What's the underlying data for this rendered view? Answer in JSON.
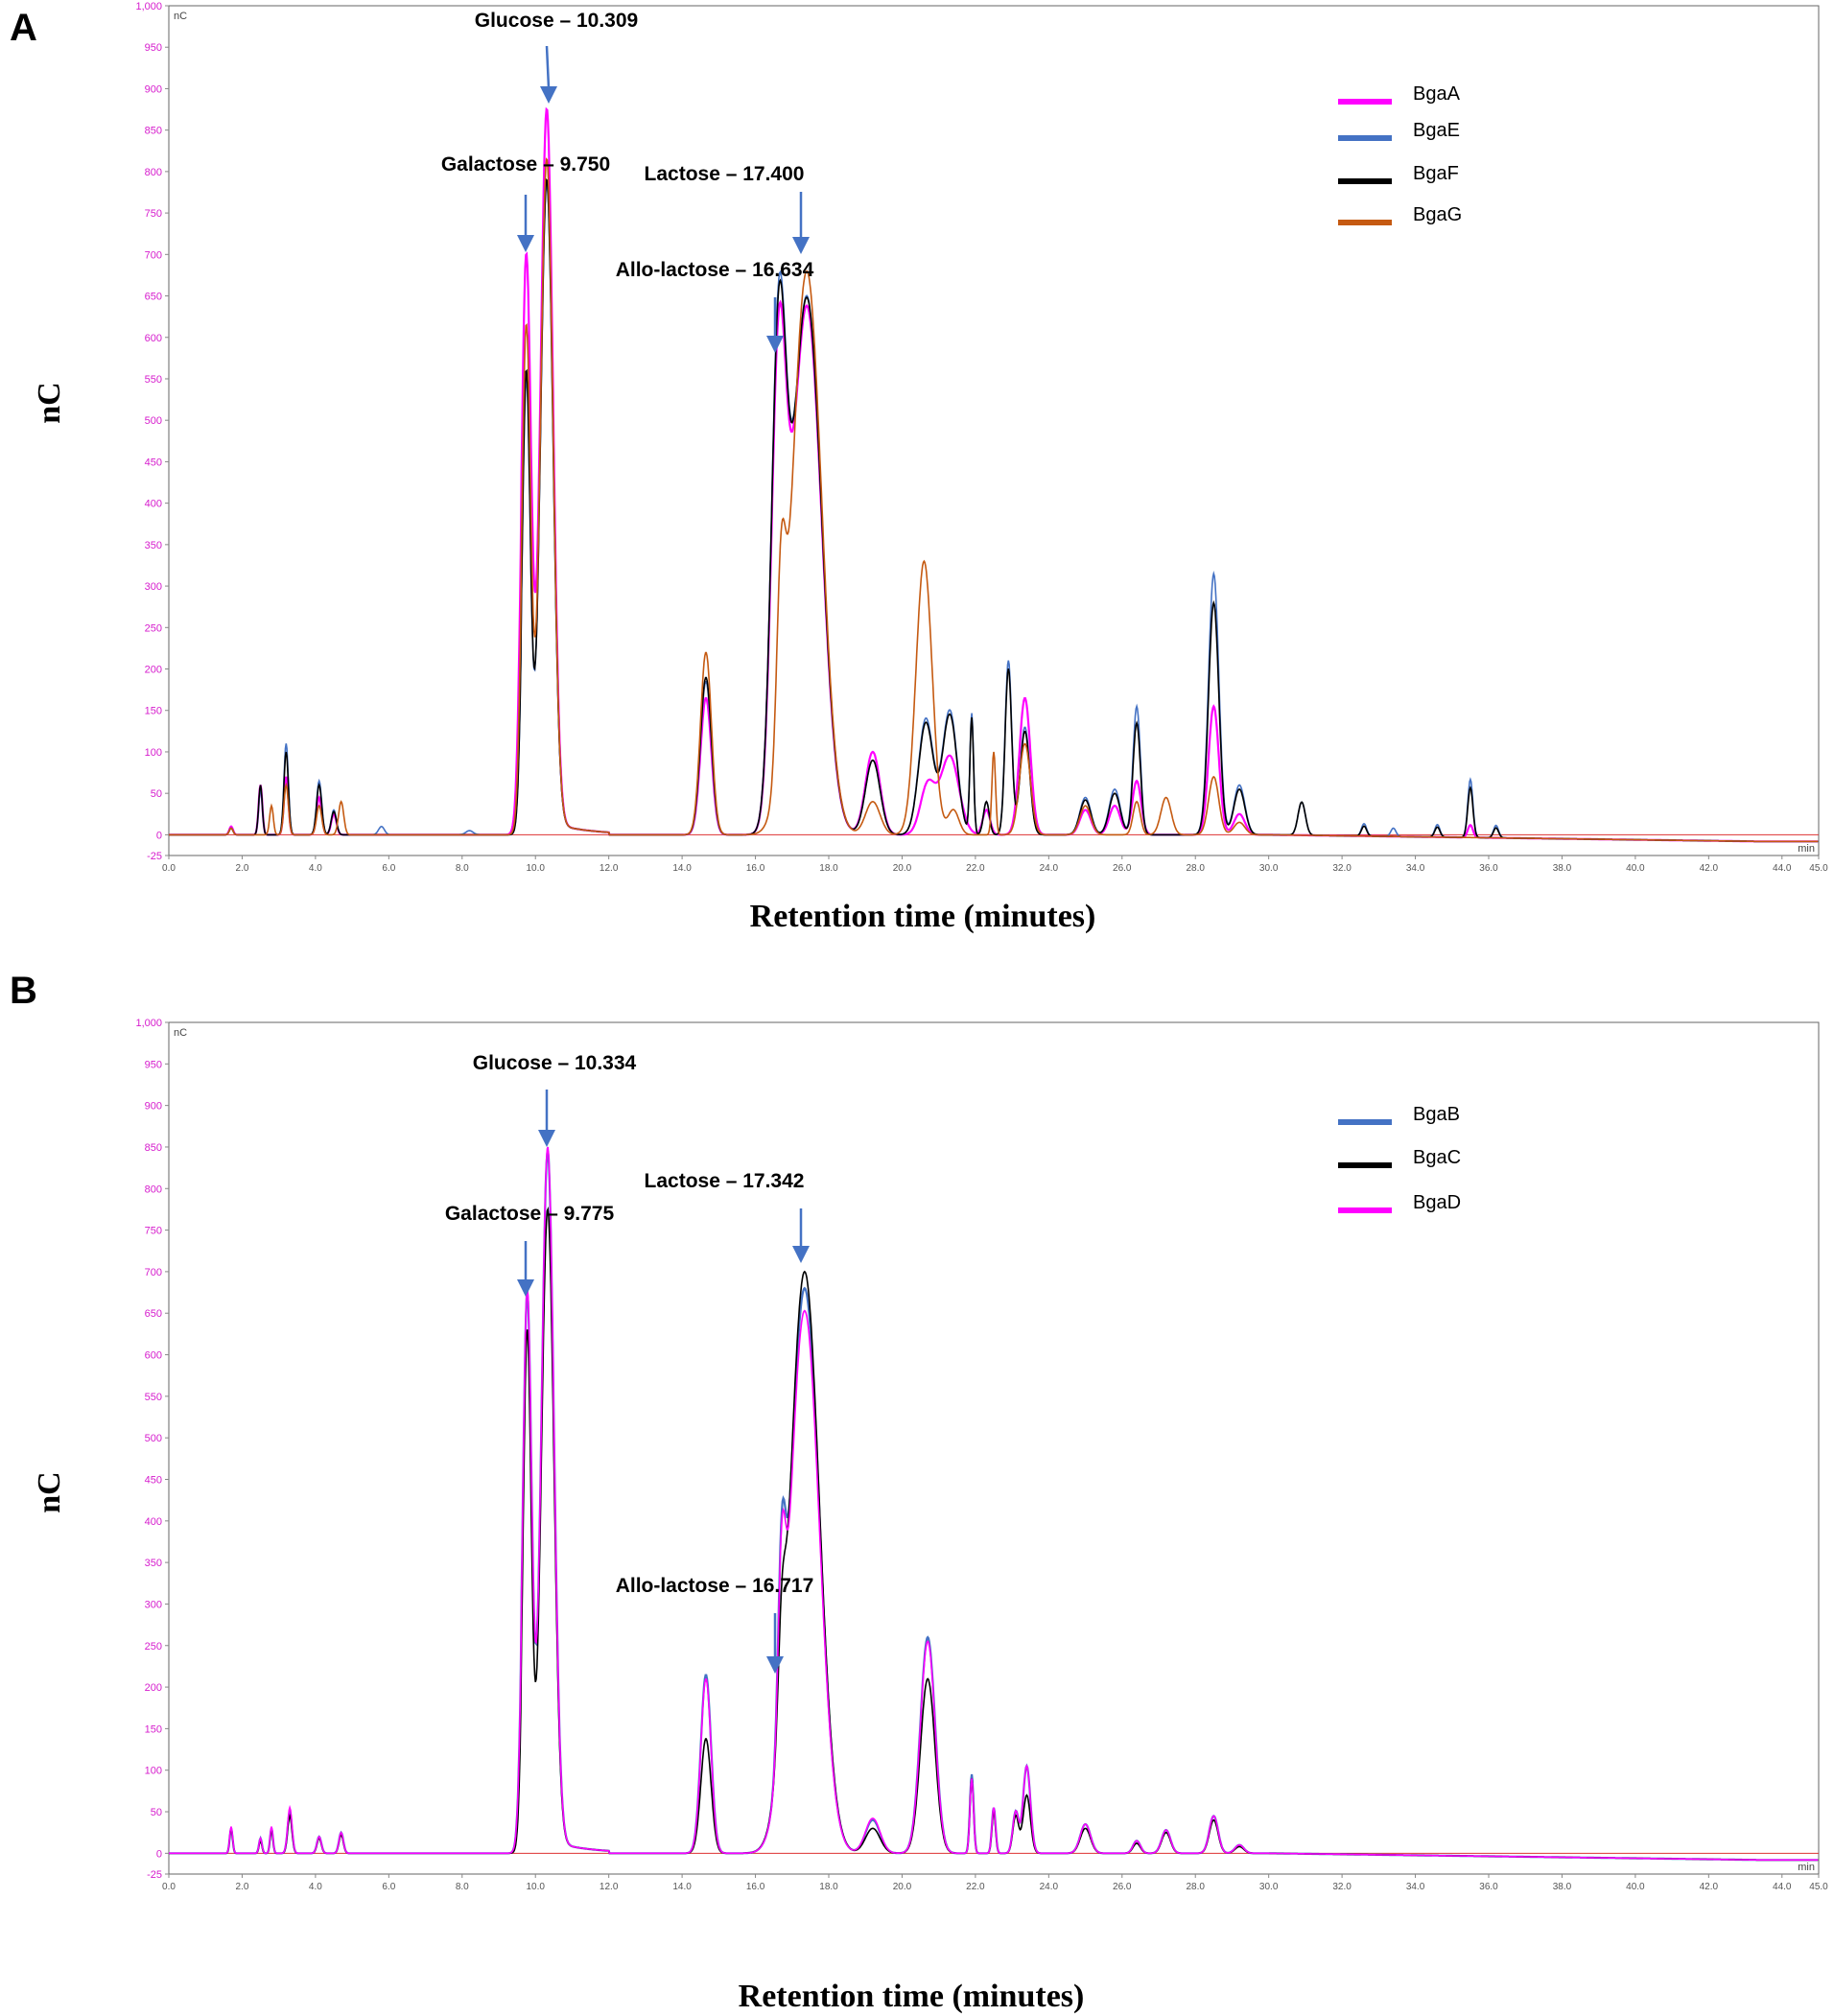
{
  "chart_data": [
    {
      "type": "line",
      "panel": "A",
      "y_unit": "nC",
      "x_unit": "min",
      "xlabel": "Retention time (minutes)",
      "ylabel": "nC",
      "xlim": [
        0,
        45
      ],
      "ylim": [
        -25,
        1000
      ],
      "x_ticks": [
        "0.0",
        "2.0",
        "4.0",
        "6.0",
        "8.0",
        "10.0",
        "12.0",
        "14.0",
        "16.0",
        "18.0",
        "20.0",
        "22.0",
        "24.0",
        "26.0",
        "28.0",
        "30.0",
        "32.0",
        "34.0",
        "36.0",
        "38.0",
        "40.0",
        "42.0",
        "44.0",
        "45.0"
      ],
      "y_ticks": [
        "-25",
        "0",
        "50",
        "100",
        "150",
        "200",
        "250",
        "300",
        "350",
        "400",
        "450",
        "500",
        "550",
        "600",
        "650",
        "700",
        "750",
        "800",
        "850",
        "900",
        "950",
        "1,000"
      ],
      "annotations": [
        {
          "label": "Glucose – 10.309",
          "x": 10.309,
          "y": 880
        },
        {
          "label": "Galactose – 9.750",
          "x": 9.75,
          "y": 690
        },
        {
          "label": "Lactose – 17.400",
          "x": 17.4,
          "y": 700
        },
        {
          "label": "Allo-lactose – 16.634",
          "x": 16.634,
          "y": 580
        }
      ],
      "series": [
        {
          "name": "BgaA",
          "color": "#ff00ff",
          "peaks": [
            [
              1.7,
              10,
              0.05
            ],
            [
              2.5,
              60,
              0.05
            ],
            [
              3.2,
              70,
              0.06
            ],
            [
              4.1,
              45,
              0.07
            ],
            [
              4.5,
              25,
              0.07
            ],
            [
              9.75,
              670,
              0.13
            ],
            [
              10.309,
              860,
              0.17
            ],
            [
              14.65,
              165,
              0.15
            ],
            [
              16.634,
              530,
              0.2
            ],
            [
              17.4,
              638,
              0.4
            ],
            [
              19.2,
              100,
              0.2
            ],
            [
              20.7,
              60,
              0.2
            ],
            [
              21.3,
              95,
              0.25
            ],
            [
              22.3,
              30,
              0.1
            ],
            [
              23.35,
              165,
              0.15
            ],
            [
              25,
              30,
              0.15
            ],
            [
              25.8,
              35,
              0.15
            ],
            [
              26.4,
              65,
              0.12
            ],
            [
              28.5,
              155,
              0.14
            ],
            [
              29.2,
              25,
              0.15
            ],
            [
              35.5,
              15,
              0.07
            ]
          ]
        },
        {
          "name": "BgaE",
          "color": "#4472c4",
          "peaks": [
            [
              1.7,
              8,
              0.05
            ],
            [
              2.5,
              55,
              0.05
            ],
            [
              3.2,
              110,
              0.06
            ],
            [
              4.1,
              65,
              0.07
            ],
            [
              4.5,
              30,
              0.07
            ],
            [
              5.8,
              10,
              0.08
            ],
            [
              8.2,
              5,
              0.1
            ],
            [
              9.75,
              520,
              0.11
            ],
            [
              10.309,
              770,
              0.17
            ],
            [
              14.65,
              185,
              0.15
            ],
            [
              16.634,
              565,
              0.2
            ],
            [
              17.4,
              650,
              0.4
            ],
            [
              19.2,
              90,
              0.2
            ],
            [
              20.65,
              140,
              0.2
            ],
            [
              21.3,
              150,
              0.2
            ],
            [
              21.9,
              145,
              0.05
            ],
            [
              22.3,
              40,
              0.08
            ],
            [
              22.9,
              210,
              0.09
            ],
            [
              23.35,
              130,
              0.13
            ],
            [
              25,
              45,
              0.15
            ],
            [
              25.8,
              55,
              0.15
            ],
            [
              26.4,
              155,
              0.1
            ],
            [
              28.5,
              315,
              0.14
            ],
            [
              29.2,
              60,
              0.15
            ],
            [
              30.9,
              40,
              0.1
            ],
            [
              32.6,
              15,
              0.07
            ],
            [
              33.4,
              10,
              0.07
            ],
            [
              34.6,
              15,
              0.07
            ],
            [
              35.5,
              70,
              0.07
            ],
            [
              36.2,
              15,
              0.07
            ]
          ]
        },
        {
          "name": "BgaF",
          "color": "#000000",
          "peaks": [
            [
              1.7,
              8,
              0.05
            ],
            [
              2.5,
              60,
              0.05
            ],
            [
              3.2,
              100,
              0.06
            ],
            [
              4.1,
              60,
              0.07
            ],
            [
              4.5,
              28,
              0.07
            ],
            [
              9.75,
              530,
              0.11
            ],
            [
              10.309,
              775,
              0.17
            ],
            [
              14.65,
              190,
              0.15
            ],
            [
              16.634,
              555,
              0.2
            ],
            [
              17.4,
              648,
              0.4
            ],
            [
              19.2,
              90,
              0.2
            ],
            [
              20.65,
              135,
              0.2
            ],
            [
              21.3,
              145,
              0.2
            ],
            [
              21.9,
              140,
              0.05
            ],
            [
              22.3,
              40,
              0.08
            ],
            [
              22.9,
              200,
              0.09
            ],
            [
              23.35,
              125,
              0.13
            ],
            [
              25,
              42,
              0.15
            ],
            [
              25.8,
              50,
              0.15
            ],
            [
              26.4,
              135,
              0.1
            ],
            [
              28.5,
              280,
              0.14
            ],
            [
              29.2,
              55,
              0.15
            ],
            [
              30.9,
              40,
              0.1
            ],
            [
              32.6,
              12,
              0.07
            ],
            [
              34.6,
              12,
              0.07
            ],
            [
              35.5,
              60,
              0.07
            ],
            [
              36.2,
              12,
              0.07
            ]
          ]
        },
        {
          "name": "BgaG",
          "color": "#c55a11",
          "peaks": [
            [
              1.7,
              8,
              0.05
            ],
            [
              2.8,
              35,
              0.05
            ],
            [
              3.2,
              60,
              0.06
            ],
            [
              4.1,
              35,
              0.07
            ],
            [
              4.7,
              40,
              0.07
            ],
            [
              9.75,
              585,
              0.12
            ],
            [
              10.309,
              800,
              0.17
            ],
            [
              14.65,
              220,
              0.15
            ],
            [
              16.7,
              218,
              0.12
            ],
            [
              17.4,
              680,
              0.4
            ],
            [
              19.2,
              40,
              0.2
            ],
            [
              20.6,
              330,
              0.22
            ],
            [
              21.4,
              30,
              0.15
            ],
            [
              22.5,
              100,
              0.05
            ],
            [
              23.35,
              110,
              0.15
            ],
            [
              25,
              35,
              0.15
            ],
            [
              26.4,
              40,
              0.1
            ],
            [
              27.2,
              45,
              0.14
            ],
            [
              28.5,
              70,
              0.14
            ],
            [
              29.2,
              15,
              0.15
            ]
          ]
        }
      ],
      "legend": [
        "BgaA",
        "BgaE",
        "BgaF",
        "BgaG"
      ],
      "legend_position": "top-right"
    },
    {
      "type": "line",
      "panel": "B",
      "y_unit": "nC",
      "x_unit": "min",
      "xlabel": "Retention time (minutes)",
      "ylabel": "nC",
      "xlim": [
        0,
        45
      ],
      "ylim": [
        -25,
        1000
      ],
      "x_ticks": [
        "0.0",
        "2.0",
        "4.0",
        "6.0",
        "8.0",
        "10.0",
        "12.0",
        "14.0",
        "16.0",
        "18.0",
        "20.0",
        "22.0",
        "24.0",
        "26.0",
        "28.0",
        "30.0",
        "32.0",
        "34.0",
        "36.0",
        "38.0",
        "40.0",
        "42.0",
        "44.0",
        "45.0"
      ],
      "y_ticks": [
        "-25",
        "0",
        "50",
        "100",
        "150",
        "200",
        "250",
        "300",
        "350",
        "400",
        "450",
        "500",
        "550",
        "600",
        "650",
        "700",
        "750",
        "800",
        "850",
        "900",
        "950",
        "1,000"
      ],
      "annotations": [
        {
          "label": "Glucose – 10.334",
          "x": 10.334,
          "y": 860
        },
        {
          "label": "Galactose – 9.775",
          "x": 9.775,
          "y": 670
        },
        {
          "label": "Lactose – 17.342",
          "x": 17.342,
          "y": 720
        },
        {
          "label": "Allo-lactose – 16.717",
          "x": 16.717,
          "y": 230
        }
      ],
      "series": [
        {
          "name": "BgaB",
          "color": "#4472c4",
          "peaks": [
            [
              1.7,
              30,
              0.04
            ],
            [
              2.5,
              18,
              0.04
            ],
            [
              2.8,
              30,
              0.04
            ],
            [
              3.3,
              50,
              0.06
            ],
            [
              4.1,
              20,
              0.06
            ],
            [
              4.7,
              25,
              0.06
            ],
            [
              9.775,
              645,
              0.12
            ],
            [
              10.334,
              830,
              0.17
            ],
            [
              14.65,
              215,
              0.14
            ],
            [
              16.717,
              210,
              0.1
            ],
            [
              17.342,
              680,
              0.4
            ],
            [
              19.2,
              40,
              0.2
            ],
            [
              20.7,
              260,
              0.2
            ],
            [
              21.9,
              95,
              0.05
            ],
            [
              22.5,
              55,
              0.05
            ],
            [
              23.1,
              50,
              0.08
            ],
            [
              23.4,
              105,
              0.1
            ],
            [
              25,
              35,
              0.14
            ],
            [
              26.4,
              15,
              0.1
            ],
            [
              27.2,
              28,
              0.12
            ],
            [
              28.5,
              45,
              0.12
            ],
            [
              29.2,
              10,
              0.12
            ]
          ]
        },
        {
          "name": "BgaC",
          "color": "#000000",
          "peaks": [
            [
              1.7,
              30,
              0.04
            ],
            [
              2.5,
              15,
              0.04
            ],
            [
              2.8,
              28,
              0.04
            ],
            [
              3.3,
              45,
              0.06
            ],
            [
              4.1,
              18,
              0.06
            ],
            [
              4.7,
              22,
              0.06
            ],
            [
              9.775,
              600,
              0.11
            ],
            [
              10.334,
              760,
              0.17
            ],
            [
              14.65,
              138,
              0.14
            ],
            [
              16.717,
              118,
              0.1
            ],
            [
              17.342,
              700,
              0.4
            ],
            [
              19.2,
              30,
              0.2
            ],
            [
              20.7,
              210,
              0.2
            ],
            [
              21.9,
              90,
              0.05
            ],
            [
              22.5,
              50,
              0.05
            ],
            [
              23.1,
              45,
              0.08
            ],
            [
              23.4,
              70,
              0.1
            ],
            [
              25,
              30,
              0.14
            ],
            [
              26.4,
              12,
              0.1
            ],
            [
              27.2,
              25,
              0.12
            ],
            [
              28.5,
              40,
              0.12
            ],
            [
              29.2,
              8,
              0.12
            ]
          ]
        },
        {
          "name": "BgaD",
          "color": "#ff00ff",
          "peaks": [
            [
              1.7,
              32,
              0.04
            ],
            [
              2.5,
              18,
              0.04
            ],
            [
              2.8,
              32,
              0.04
            ],
            [
              3.3,
              55,
              0.06
            ],
            [
              4.1,
              20,
              0.06
            ],
            [
              4.7,
              25,
              0.06
            ],
            [
              9.775,
              650,
              0.12
            ],
            [
              10.334,
              835,
              0.17
            ],
            [
              14.65,
              210,
              0.14
            ],
            [
              16.717,
              205,
              0.1
            ],
            [
              17.342,
              653,
              0.4
            ],
            [
              19.2,
              42,
              0.2
            ],
            [
              20.7,
              255,
              0.2
            ],
            [
              21.9,
              90,
              0.05
            ],
            [
              22.5,
              55,
              0.05
            ],
            [
              23.1,
              50,
              0.08
            ],
            [
              23.4,
              105,
              0.1
            ],
            [
              25,
              35,
              0.14
            ],
            [
              26.4,
              15,
              0.1
            ],
            [
              27.2,
              28,
              0.12
            ],
            [
              28.5,
              45,
              0.12
            ],
            [
              29.2,
              10,
              0.12
            ]
          ]
        }
      ],
      "legend": [
        "BgaB",
        "BgaC",
        "BgaD"
      ],
      "legend_position": "top-right"
    }
  ]
}
